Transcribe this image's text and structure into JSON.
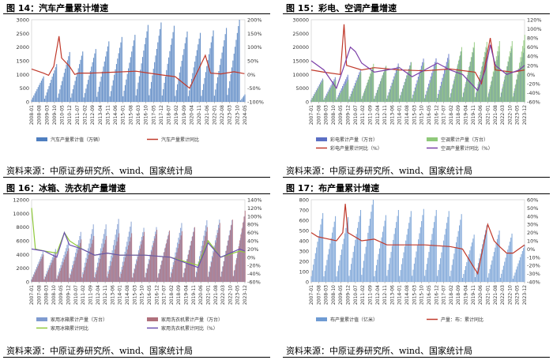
{
  "panels": [
    {
      "title": "图 14：汽车产量累计增速",
      "source": "资料来源：中原证券研究所、wind、国家统计局",
      "legend": [
        "汽车产量累计值（万辆）",
        "汽车产量累计同比"
      ],
      "colors": {
        "bar": "#4f7fc0",
        "line": "#c0392b"
      }
    },
    {
      "title": "图 15：彩电、空调产量增速",
      "source": "资料来源：中原证券研究所、wind、国家统计局",
      "legend": [
        "彩电累计产量（万台）",
        "空调累计产量（万台）",
        "彩电产量累计同比（%）",
        "空调产量累计同比（%）"
      ],
      "colors": {
        "bar1": "#5b6fc4",
        "bar2": "#8fc97a",
        "line1": "#c0392b",
        "line2": "#7b3fa8"
      }
    },
    {
      "title": "图 16：冰箱、洗衣机产量增速",
      "source": "资料来源：中原证券研究所、wind、国家统计局",
      "legend": [
        "家用冰箱累计产量（万台）",
        "家用洗衣机累计产量（万台）",
        "家用冰箱累计同比",
        "家用洗衣机累计同比（%）"
      ],
      "colors": {
        "bar1": "#7f9bd0",
        "bar2": "#b0707c",
        "line1": "#8fc93a",
        "line2": "#6a4fb0"
      }
    },
    {
      "title": "图 17：布产量累计增速",
      "source": "资料来源：中原证券研究所、wind、国家统计局",
      "legend": [
        "布产量累计值（亿米）",
        "产量：布：累计同比"
      ],
      "colors": {
        "bar": "#6f9bd3",
        "line": "#c0392b"
      }
    }
  ],
  "chart_data": [
    {
      "type": "bar+line",
      "title": "图 14：汽车产量累计增速",
      "x": [
        "2008-01",
        "2008-08",
        "2009-03",
        "2009-10",
        "2010-05",
        "2010-12",
        "2011-07",
        "2012-02",
        "2012-09",
        "2013-04",
        "2013-11",
        "2014-06",
        "2015-01",
        "2015-08",
        "2016-03",
        "2016-10",
        "2017-05",
        "2017-12",
        "2018-07",
        "2019-02",
        "2019-09",
        "2020-04",
        "2020-11",
        "2021-06",
        "2022-01",
        "2022-08",
        "2023-03",
        "2023-10",
        "2024-05"
      ],
      "y_left_ticks": [
        0,
        500,
        1000,
        1500,
        2000,
        2500,
        3000
      ],
      "y_right_ticks": [
        "-100%",
        "-50%",
        "0%",
        "50%",
        "100%",
        "150%",
        "200%"
      ],
      "ylim_left": [
        0,
        3000
      ],
      "ylim_right": [
        -100,
        200
      ],
      "series": [
        {
          "name": "汽车产量累计值（万辆）",
          "type": "bar",
          "annual_end_values": [
            930,
            1380,
            1820,
            1840,
            1930,
            2210,
            2370,
            2450,
            2810,
            2900,
            2780,
            2570,
            2520,
            2610,
            2700,
            3020,
            650
          ]
        },
        {
          "name": "汽车产量累计同比",
          "type": "line",
          "points": [
            [
              2008.0,
              20
            ],
            [
              2008.9,
              5
            ],
            [
              2009.3,
              -3
            ],
            [
              2009.7,
              30
            ],
            [
              2010.1,
              140
            ],
            [
              2010.3,
              60
            ],
            [
              2010.9,
              30
            ],
            [
              2011.3,
              0
            ],
            [
              2011.6,
              5
            ],
            [
              2012.5,
              5
            ],
            [
              2014,
              8
            ],
            [
              2016,
              12
            ],
            [
              2017,
              5
            ],
            [
              2018,
              -2
            ],
            [
              2019,
              -8
            ],
            [
              2020.1,
              -50
            ],
            [
              2020.6,
              0
            ],
            [
              2021.3,
              70
            ],
            [
              2021.7,
              5
            ],
            [
              2022.5,
              2
            ],
            [
              2023.5,
              10
            ],
            [
              2024.3,
              3
            ]
          ]
        }
      ]
    },
    {
      "type": "bar+line",
      "title": "图 15：彩电、空调产量增速",
      "x": [
        "2007-01",
        "2007-08",
        "2008-03",
        "2008-10",
        "2009-05",
        "2009-12",
        "2010-07",
        "2011-02",
        "2011-09",
        "2012-04",
        "2012-11",
        "2013-06",
        "2014-01",
        "2014-08",
        "2015-03",
        "2015-10",
        "2016-05",
        "2016-12",
        "2017-07",
        "2018-02",
        "2018-09",
        "2019-04",
        "2019-11",
        "2020-06",
        "2021-01",
        "2021-08",
        "2022-03",
        "2022-10",
        "2023-05",
        "2023-12"
      ],
      "y_left_ticks": [
        0,
        5000,
        10000,
        15000,
        20000,
        25000,
        30000
      ],
      "y_right_ticks": [
        "-60%",
        "-40%",
        "-20%",
        "0%",
        "20%",
        "40%",
        "60%",
        "80%",
        "100%",
        "120%"
      ],
      "ylim_left": [
        0,
        30000
      ],
      "ylim_right": [
        -60,
        120
      ],
      "series": [
        {
          "name": "彩电累计产量（万台）",
          "type": "bar",
          "annual_end_values": [
            8500,
            9000,
            9900,
            11800,
            12200,
            12800,
            14000,
            14500,
            15800,
            15900,
            17500,
            18500,
            19600,
            19600,
            18400,
            19500,
            19600
          ]
        },
        {
          "name": "空调累计产量（万台）",
          "type": "bar",
          "annual_end_values": [
            8000,
            8100,
            8100,
            11000,
            13900,
            13200,
            13100,
            14500,
            14300,
            14200,
            15400,
            20000,
            21800,
            21900,
            22200,
            22200,
            24500
          ]
        },
        {
          "name": "彩电产量累计同比（%）",
          "type": "line",
          "points": [
            [
              2007,
              10
            ],
            [
              2008,
              5
            ],
            [
              2009.3,
              0
            ],
            [
              2009.6,
              110
            ],
            [
              2009.8,
              20
            ],
            [
              2011,
              10
            ],
            [
              2012,
              15
            ],
            [
              2014,
              10
            ],
            [
              2016,
              8
            ],
            [
              2018,
              12
            ],
            [
              2020,
              5
            ],
            [
              2020.5,
              -20
            ],
            [
              2021.2,
              80
            ],
            [
              2021.6,
              10
            ],
            [
              2023,
              5
            ],
            [
              2024,
              10
            ]
          ]
        },
        {
          "name": "空调产量累计同比（%）",
          "type": "line",
          "points": [
            [
              2007,
              30
            ],
            [
              2008,
              10
            ],
            [
              2009,
              -30
            ],
            [
              2009.5,
              10
            ],
            [
              2010.1,
              60
            ],
            [
              2010.5,
              50
            ],
            [
              2011,
              25
            ],
            [
              2012,
              5
            ],
            [
              2013,
              10
            ],
            [
              2014,
              15
            ],
            [
              2015,
              -5
            ],
            [
              2016,
              10
            ],
            [
              2017,
              25
            ],
            [
              2018,
              10
            ],
            [
              2019,
              0
            ],
            [
              2020.2,
              -35
            ],
            [
              2020.8,
              10
            ],
            [
              2021.2,
              65
            ],
            [
              2021.6,
              20
            ],
            [
              2022.5,
              0
            ],
            [
              2023.5,
              10
            ],
            [
              2024,
              20
            ]
          ]
        }
      ]
    },
    {
      "type": "bar+line",
      "title": "图 16：冰箱、洗衣机产量增速",
      "x": [
        "2007-01",
        "2007-08",
        "2008-03",
        "2008-10",
        "2009-05",
        "2009-12",
        "2010-07",
        "2011-02",
        "2011-09",
        "2012-04",
        "2012-11",
        "2013-06",
        "2014-01",
        "2014-08",
        "2015-03",
        "2015-10",
        "2016-05",
        "2016-12",
        "2017-07",
        "2018-02",
        "2018-09",
        "2019-04",
        "2019-11",
        "2020-06",
        "2021-01",
        "2021-08",
        "2022-03",
        "2022-10",
        "2023-05",
        "2023-12"
      ],
      "y_left_ticks": [
        0,
        2000,
        4000,
        6000,
        8000,
        10000,
        12000
      ],
      "y_right_ticks": [
        "-60%",
        "-40%",
        "-20%",
        "0%",
        "20%",
        "40%",
        "60%",
        "80%",
        "100%",
        "120%",
        "140%"
      ],
      "ylim_left": [
        0,
        12000
      ],
      "ylim_right": [
        -60,
        140
      ],
      "series": [
        {
          "name": "家用冰箱累计产量（万台）",
          "type": "bar",
          "annual_end_values": [
            4400,
            4800,
            5900,
            7300,
            8400,
            8400,
            9200,
            8800,
            7900,
            8000,
            7300,
            8600,
            7900,
            9000,
            9100,
            9000,
            9600
          ]
        },
        {
          "name": "家用洗衣机累计产量（万台）",
          "type": "bar",
          "annual_end_values": [
            4000,
            4200,
            4900,
            6200,
            6700,
            6700,
            7100,
            7100,
            7300,
            7600,
            7500,
            7400,
            8000,
            8000,
            8600,
            9100,
            10400
          ]
        },
        {
          "name": "家用冰箱累计同比",
          "type": "line",
          "points": [
            [
              2007,
              120
            ],
            [
              2007.3,
              20
            ],
            [
              2008,
              15
            ],
            [
              2009,
              10
            ],
            [
              2009.6,
              60
            ],
            [
              2010,
              40
            ],
            [
              2011,
              20
            ],
            [
              2012,
              5
            ],
            [
              2013,
              10
            ],
            [
              2014,
              5
            ],
            [
              2016,
              5
            ],
            [
              2018,
              0
            ],
            [
              2020.2,
              -20
            ],
            [
              2021,
              40
            ],
            [
              2022,
              0
            ],
            [
              2023.5,
              15
            ],
            [
              2024,
              12
            ]
          ]
        },
        {
          "name": "家用洗衣机累计同比（%）",
          "type": "line",
          "points": [
            [
              2007,
              20
            ],
            [
              2008,
              15
            ],
            [
              2009,
              0
            ],
            [
              2009.6,
              60
            ],
            [
              2010,
              30
            ],
            [
              2011,
              20
            ],
            [
              2012,
              5
            ],
            [
              2013,
              10
            ],
            [
              2014,
              5
            ],
            [
              2016,
              5
            ],
            [
              2018,
              0
            ],
            [
              2020.2,
              -25
            ],
            [
              2021,
              35
            ],
            [
              2022,
              0
            ],
            [
              2023.5,
              20
            ],
            [
              2024,
              15
            ]
          ]
        }
      ]
    },
    {
      "type": "bar+line",
      "title": "图 17：布产量累计增速",
      "x": [
        "2007-01",
        "2007-08",
        "2008-03",
        "2008-10",
        "2009-05",
        "2009-12",
        "2010-07",
        "2011-02",
        "2011-09",
        "2012-04",
        "2012-11",
        "2013-06",
        "2014-01",
        "2014-08",
        "2015-03",
        "2015-10",
        "2016-05",
        "2016-12",
        "2017-07",
        "2018-02",
        "2018-09",
        "2019-04",
        "2019-11",
        "2020-06",
        "2021-01",
        "2021-08",
        "2022-03",
        "2022-10",
        "2023-05",
        "2023-12"
      ],
      "y_left_ticks": [
        0,
        100,
        200,
        300,
        400,
        500,
        600,
        700,
        800
      ],
      "y_right_ticks": [
        "-40%",
        "-30%",
        "-20%",
        "-10%",
        "0%",
        "10%",
        "20%",
        "30%",
        "40%",
        "50%",
        "60%"
      ],
      "ylim_left": [
        0,
        800
      ],
      "ylim_right": [
        -40,
        60
      ],
      "series": [
        {
          "name": "布产量累计值（亿米）",
          "type": "bar",
          "annual_end_values": [
            670,
            640,
            630,
            700,
            820,
            650,
            700,
            690,
            710,
            700,
            690,
            660,
            460,
            550,
            500,
            470,
            360
          ]
        },
        {
          "name": "产量：布：累计同比",
          "type": "line",
          "points": [
            [
              2007,
              20
            ],
            [
              2007.5,
              15
            ],
            [
              2009,
              10
            ],
            [
              2009.5,
              20
            ],
            [
              2009.7,
              55
            ],
            [
              2009.9,
              20
            ],
            [
              2011,
              10
            ],
            [
              2012,
              12
            ],
            [
              2013,
              5
            ],
            [
              2014,
              5
            ],
            [
              2016,
              5
            ],
            [
              2018,
              3
            ],
            [
              2019,
              0
            ],
            [
              2020.2,
              -30
            ],
            [
              2021,
              30
            ],
            [
              2021.5,
              10
            ],
            [
              2022,
              2
            ],
            [
              2022.5,
              -5
            ],
            [
              2023,
              -5
            ],
            [
              2024,
              5
            ]
          ]
        }
      ]
    }
  ]
}
